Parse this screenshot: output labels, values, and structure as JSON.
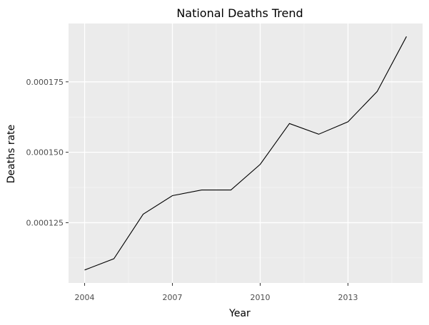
{
  "chart_data": {
    "type": "line",
    "title": "National Deaths Trend",
    "xlabel": "Year",
    "ylabel": "Deaths rate",
    "x": [
      2004,
      2005,
      2006,
      2007,
      2008,
      2009,
      2010,
      2011,
      2012,
      2013,
      2014,
      2015
    ],
    "series": [
      {
        "values": [
          0.0001082,
          0.0001122,
          0.000128,
          0.0001346,
          0.0001366,
          0.0001366,
          0.0001457,
          0.0001602,
          0.0001564,
          0.0001608,
          0.0001716,
          0.0001911
        ]
      }
    ],
    "xticks": [
      2004,
      2007,
      2010,
      2013
    ],
    "xtick_labels": [
      "2004",
      "2007",
      "2010",
      "2013"
    ],
    "yticks": [
      0.000125,
      0.00015,
      0.000175
    ],
    "ytick_labels": [
      "0.000125",
      "0.000150",
      "0.000175"
    ],
    "xlim": [
      2003.45,
      2015.55
    ],
    "ylim": [
      0.0001036,
      0.0001957
    ],
    "grid": true,
    "legend": "none",
    "colors": {
      "panel_background": "#ebebeb",
      "grid_major": "#ffffff",
      "grid_minor": "#f6f6f6",
      "line": "#000000",
      "tick_text": "#4d4d4d",
      "tick_mark": "#333333"
    }
  }
}
